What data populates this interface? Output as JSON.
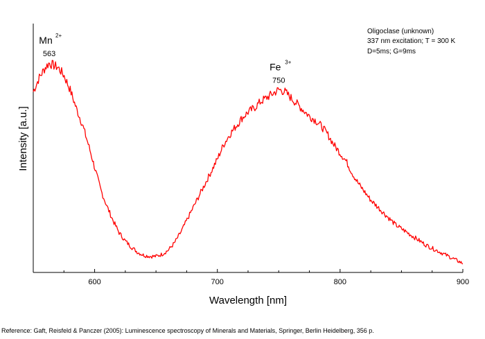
{
  "chart_data": {
    "type": "line",
    "title": "",
    "xlabel": "Wavelength [nm]",
    "ylabel": "Intensity [a.u.]",
    "xlim": [
      550,
      900
    ],
    "ylim": [
      0,
      1
    ],
    "x_ticks": [
      600,
      700,
      800,
      900
    ],
    "y_ticks_shown": false,
    "grid": false,
    "series": [
      {
        "color": "#ff0000",
        "x": [
          550,
          555,
          560,
          563,
          566,
          570,
          575,
          580,
          585,
          590,
          595,
          600,
          605,
          610,
          615,
          620,
          625,
          630,
          635,
          640,
          645,
          650,
          655,
          660,
          665,
          670,
          675,
          680,
          685,
          690,
          695,
          700,
          705,
          710,
          715,
          720,
          725,
          730,
          735,
          740,
          745,
          750,
          755,
          760,
          765,
          770,
          775,
          780,
          785,
          790,
          795,
          800,
          805,
          810,
          815,
          820,
          825,
          830,
          835,
          840,
          845,
          850,
          855,
          860,
          865,
          870,
          875,
          880,
          885,
          890,
          895,
          900
        ],
        "y": [
          0.85,
          0.92,
          0.97,
          0.99,
          0.98,
          0.97,
          0.93,
          0.86,
          0.77,
          0.69,
          0.59,
          0.48,
          0.37,
          0.29,
          0.22,
          0.16,
          0.12,
          0.09,
          0.065,
          0.05,
          0.045,
          0.045,
          0.055,
          0.075,
          0.11,
          0.16,
          0.22,
          0.28,
          0.34,
          0.4,
          0.46,
          0.52,
          0.59,
          0.64,
          0.68,
          0.72,
          0.75,
          0.77,
          0.8,
          0.82,
          0.84,
          0.86,
          0.85,
          0.82,
          0.79,
          0.76,
          0.73,
          0.71,
          0.68,
          0.64,
          0.59,
          0.55,
          0.51,
          0.45,
          0.4,
          0.36,
          0.32,
          0.29,
          0.26,
          0.23,
          0.2,
          0.18,
          0.16,
          0.14,
          0.12,
          0.1,
          0.085,
          0.07,
          0.055,
          0.04,
          0.025,
          0.01
        ]
      }
    ],
    "annotations": [
      {
        "ion": "Mn",
        "charge": "2+",
        "value": "563",
        "x": 563,
        "y": 0.99
      },
      {
        "ion": "Fe",
        "charge": "3+",
        "value": "750",
        "x": 750,
        "y": 0.86
      }
    ],
    "info_lines": [
      "Oligoclase (unknown)",
      "337 nm excitation; T = 300 K",
      "D=5ms; G=9ms"
    ],
    "info_placement": "top-right"
  },
  "reference": "Reference: Gaft, Reisfeld & Panczer (2005): Luminescence spectroscopy of Minerals and Materials, Springer, Berlin Heidelberg, 356 p."
}
